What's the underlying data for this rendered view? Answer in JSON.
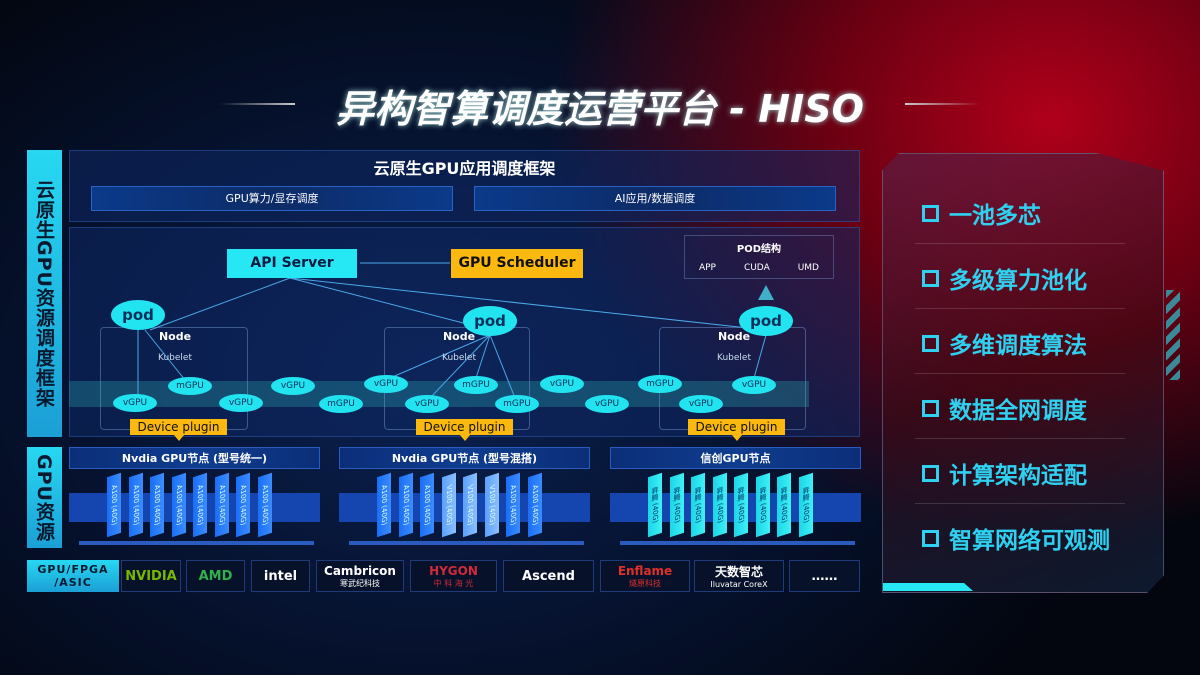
{
  "title": "异构智算调度运营平台 - HISO",
  "left_labels": {
    "framework": "云原生GPU资源调度框架",
    "gpu": "GPU资源",
    "vendor": "GPU/FPGA /ASIC"
  },
  "framework": {
    "title": "云原生GPU应用调度框架",
    "bars": [
      "GPU算力/显存调度",
      "AI应用/数据调度"
    ]
  },
  "api_server": "API Server",
  "gpu_scheduler": "GPU Scheduler",
  "pod_struct": {
    "title": "POD结构",
    "items": [
      "APP",
      "CUDA",
      "UMD"
    ]
  },
  "nodes": [
    {
      "title": "Node",
      "kubelet": "Kubelet",
      "pod": "pod",
      "plugin": "Device plugin"
    },
    {
      "title": "Node",
      "kubelet": "Kubelet",
      "pod": "pod",
      "plugin": "Device plugin"
    },
    {
      "title": "Node",
      "kubelet": "Kubelet",
      "pod": "pod",
      "plugin": "Device plugin"
    }
  ],
  "vgpus": [
    "vGPU",
    "mGPU",
    "vGPU",
    "vGPU",
    "mGPU",
    "vGPU",
    "vGPU",
    "mGPU",
    "mGPU",
    "vGPU",
    "vGPU",
    "mGPU",
    "vGPU",
    "vGPU"
  ],
  "gpu_groups": [
    {
      "title": "Nvdia GPU节点 (型号统一)",
      "cards": [
        "A100 (40G)",
        "A100 (40G)",
        "A100 (40G)",
        "A100 (40G)",
        "A100 (40G)",
        "A100 (40G)",
        "A100 (40G)",
        "A100 (40G)"
      ]
    },
    {
      "title": "Nvdia GPU节点 (型号混搭)",
      "cards": [
        "A100 (40G)",
        "A100 (40G)",
        "A100 (40G)",
        "V100 (40G)",
        "V100 (40G)",
        "V100 (40G)",
        "A100 (40G)",
        "A100 (40G)"
      ]
    },
    {
      "title": "信创GPU节点",
      "cards": [
        "昇腾 (40G)",
        "昇腾 (40G)",
        "昇腾 (40G)",
        "昇腾 (40G)",
        "昇腾 (40G)",
        "昇腾 (40G)",
        "昇腾 (40G)",
        "昇腾 (40G)"
      ]
    }
  ],
  "vendors": [
    {
      "name": "NVIDIA",
      "sub": "",
      "color": "#76b900"
    },
    {
      "name": "AMD",
      "sub": "",
      "color": "#2fb34a"
    },
    {
      "name": "intel",
      "sub": "",
      "color": "#ffffff"
    },
    {
      "name": "Cambricon",
      "sub": "寒武纪科技",
      "color": "#ffffff"
    },
    {
      "name": "HYGON",
      "sub": "中 科 海 光",
      "color": "#d32a3a"
    },
    {
      "name": "Ascend",
      "sub": "",
      "color": "#ffffff"
    },
    {
      "name": "Enflame",
      "sub": "燧原科技",
      "color": "#e0302a"
    },
    {
      "name": "天数智芯",
      "sub": "Iluvatar CoreX",
      "color": "#ffffff"
    },
    {
      "name": "……",
      "sub": "",
      "color": "#ffffff"
    }
  ],
  "features": [
    "一池多芯",
    "多级算力池化",
    "多维调度算法",
    "数据全网调度",
    "计算架构适配",
    "智算网络可观测"
  ],
  "colors": {
    "cyan": "#26e8f5",
    "yellow": "#fbb80f",
    "blue": "#1a6ef5",
    "red": "#b0001a"
  }
}
